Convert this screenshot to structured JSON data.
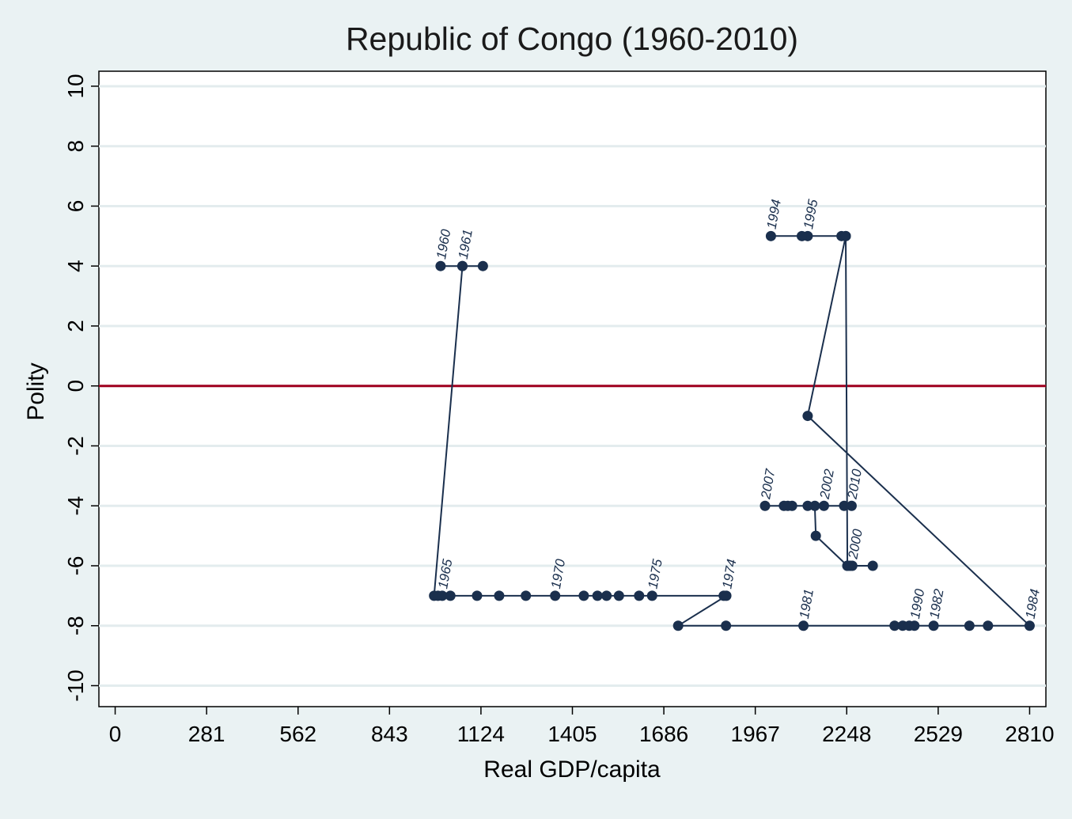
{
  "chart_data": {
    "type": "line",
    "title": "Republic of Congo (1960-2010)",
    "xlabel": "Real GDP/capita",
    "ylabel": "Polity",
    "xlim": [
      -50,
      2860
    ],
    "ylim": [
      -10.7,
      10.5
    ],
    "xticks": [
      0,
      281,
      562,
      843,
      1124,
      1405,
      1686,
      1967,
      2248,
      2529,
      2810
    ],
    "yticks": [
      10,
      8,
      6,
      4,
      2,
      0,
      -2,
      -4,
      -6,
      -8,
      -10
    ],
    "grid": true,
    "reference_line": {
      "y": 0,
      "color": "#a0001e"
    },
    "colors": {
      "background": "#eaf2f3",
      "plot_background": "#ffffff",
      "grid": "#e3ecee",
      "series": "#1a2f4d",
      "axis_text": "#000000"
    },
    "series": [
      {
        "points": [
          {
            "x": 1000,
            "y": 4,
            "label": "1960"
          },
          {
            "x": 1067,
            "y": 4,
            "label": "1961"
          },
          {
            "x": 1130,
            "y": 4,
            "label": ""
          },
          {
            "x": 1067,
            "y": 4,
            "label": ""
          },
          {
            "x": 980,
            "y": -7,
            "label": ""
          },
          {
            "x": 992,
            "y": -7,
            "label": ""
          },
          {
            "x": 1005,
            "y": -7,
            "label": "1965"
          },
          {
            "x": 1030,
            "y": -7,
            "label": ""
          },
          {
            "x": 1112,
            "y": -7,
            "label": ""
          },
          {
            "x": 1180,
            "y": -7,
            "label": ""
          },
          {
            "x": 1262,
            "y": -7,
            "label": ""
          },
          {
            "x": 1352,
            "y": -7,
            "label": "1970"
          },
          {
            "x": 1440,
            "y": -7,
            "label": ""
          },
          {
            "x": 1482,
            "y": -7,
            "label": ""
          },
          {
            "x": 1510,
            "y": -7,
            "label": ""
          },
          {
            "x": 1548,
            "y": -7,
            "label": ""
          },
          {
            "x": 1610,
            "y": -7,
            "label": ""
          },
          {
            "x": 1650,
            "y": -7,
            "label": "1975"
          },
          {
            "x": 1870,
            "y": -7,
            "label": ""
          },
          {
            "x": 1878,
            "y": -7,
            "label": "1974"
          },
          {
            "x": 1730,
            "y": -8,
            "label": ""
          },
          {
            "x": 1877,
            "y": -8,
            "label": ""
          },
          {
            "x": 2115,
            "y": -8,
            "label": "1981"
          },
          {
            "x": 2395,
            "y": -8,
            "label": ""
          },
          {
            "x": 2420,
            "y": -8,
            "label": ""
          },
          {
            "x": 2440,
            "y": -8,
            "label": ""
          },
          {
            "x": 2456,
            "y": -8,
            "label": "1990"
          },
          {
            "x": 2515,
            "y": -8,
            "label": "1982"
          },
          {
            "x": 2625,
            "y": -8,
            "label": ""
          },
          {
            "x": 2682,
            "y": -8,
            "label": ""
          },
          {
            "x": 2810,
            "y": -8,
            "label": "1984"
          },
          {
            "x": 2128,
            "y": -1,
            "label": ""
          },
          {
            "x": 2245,
            "y": 5,
            "label": ""
          },
          {
            "x": 2232,
            "y": 5,
            "label": ""
          },
          {
            "x": 2128,
            "y": 5,
            "label": "1995"
          },
          {
            "x": 2110,
            "y": 5,
            "label": ""
          },
          {
            "x": 2015,
            "y": 5,
            "label": "1994"
          },
          {
            "x": 2245,
            "y": 5,
            "label": ""
          },
          {
            "x": 2250,
            "y": -6,
            "label": ""
          },
          {
            "x": 2258,
            "y": -6,
            "label": ""
          },
          {
            "x": 2265,
            "y": -6,
            "label": "2000"
          },
          {
            "x": 2328,
            "y": -6,
            "label": ""
          },
          {
            "x": 2250,
            "y": -6,
            "label": ""
          },
          {
            "x": 2153,
            "y": -5,
            "label": ""
          },
          {
            "x": 2150,
            "y": -4,
            "label": ""
          },
          {
            "x": 2128,
            "y": -4,
            "label": ""
          },
          {
            "x": 2080,
            "y": -4,
            "label": ""
          },
          {
            "x": 2067,
            "y": -4,
            "label": ""
          },
          {
            "x": 2055,
            "y": -4,
            "label": ""
          },
          {
            "x": 1997,
            "y": -4,
            "label": "2007"
          },
          {
            "x": 2178,
            "y": -4,
            "label": "2002"
          },
          {
            "x": 2240,
            "y": -4,
            "label": ""
          },
          {
            "x": 2263,
            "y": -4,
            "label": "2010"
          }
        ]
      }
    ]
  }
}
